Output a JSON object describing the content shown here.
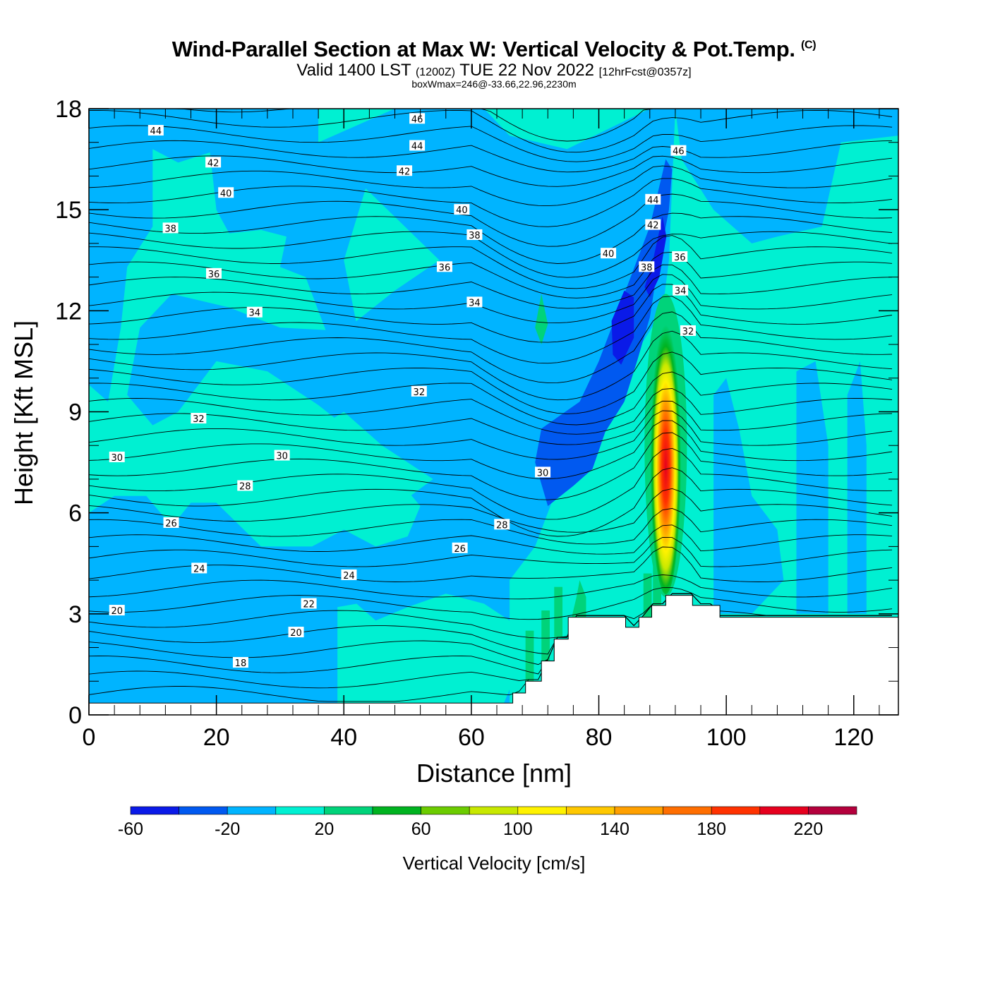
{
  "header": {
    "title": "Wind-Parallel Section at Max W: Vertical Velocity & Pot.Temp.",
    "copyright": "(C)",
    "valid_prefix": "Valid 1400 LST",
    "valid_zulu": "(1200Z)",
    "valid_date": "TUE 22 Nov 2022",
    "forecast": "[12hrFcst@0357z]",
    "box_wmax": "boxWmax=246@-33.66,22.96,2230m"
  },
  "chart_data": {
    "type": "cross-section contour",
    "xlabel": "Distance [nm]",
    "ylabel": "Height [Kft MSL]",
    "xlim": [
      0,
      127
    ],
    "ylim": [
      0,
      18
    ],
    "xticks": [
      "0",
      "20",
      "40",
      "60",
      "80",
      "100",
      "120"
    ],
    "yticks": [
      "0",
      "3",
      "6",
      "9",
      "12",
      "15",
      "18"
    ],
    "colorbar": {
      "label": "Vertical Velocity [cm/s]",
      "levels": [
        -60,
        -40,
        -20,
        0,
        20,
        40,
        60,
        80,
        100,
        120,
        140,
        160,
        180,
        200,
        220,
        240
      ],
      "tick_labels": [
        "-60",
        "-20",
        "20",
        "60",
        "100",
        "140",
        "180",
        "220"
      ],
      "colors": [
        "#0a1ae8",
        "#0059f0",
        "#00b4ff",
        "#00f0d2",
        "#00d37a",
        "#00b320",
        "#6ccc00",
        "#c8e800",
        "#fff200",
        "#ffc800",
        "#ffa000",
        "#ff6e00",
        "#ff3200",
        "#e6001e",
        "#b4003c"
      ]
    },
    "max_updraft": {
      "x_nm": 90.5,
      "z_kft_bottom": 3.5,
      "z_kft_top": 12.5,
      "peak_cm_s": 246
    },
    "terrain_kft": [
      [
        0,
        0.35
      ],
      [
        66.5,
        0.35
      ],
      [
        66.5,
        0.65
      ],
      [
        68.5,
        0.65
      ],
      [
        68.5,
        1.0
      ],
      [
        71,
        1.0
      ],
      [
        71,
        1.6
      ],
      [
        73,
        1.6
      ],
      [
        73,
        2.25
      ],
      [
        75.2,
        2.25
      ],
      [
        75.2,
        2.9
      ],
      [
        84.2,
        2.9
      ],
      [
        84.2,
        2.6
      ],
      [
        86.3,
        2.6
      ],
      [
        86.3,
        2.9
      ],
      [
        88.3,
        2.9
      ],
      [
        88.3,
        3.25
      ],
      [
        90.5,
        3.25
      ],
      [
        90.5,
        3.55
      ],
      [
        94.7,
        3.55
      ],
      [
        94.7,
        3.25
      ],
      [
        99,
        3.25
      ],
      [
        99,
        2.9
      ],
      [
        127,
        2.9
      ]
    ],
    "theta_labels": [
      {
        "text": "44",
        "x": 10.5,
        "y": 17.35
      },
      {
        "text": "46",
        "x": 51.5,
        "y": 17.7
      },
      {
        "text": "44",
        "x": 51.5,
        "y": 16.9
      },
      {
        "text": "42",
        "x": 19.5,
        "y": 16.4
      },
      {
        "text": "42",
        "x": 49.5,
        "y": 16.15
      },
      {
        "text": "46",
        "x": 92.5,
        "y": 16.75
      },
      {
        "text": "40",
        "x": 21.5,
        "y": 15.5
      },
      {
        "text": "40",
        "x": 58.5,
        "y": 15.0
      },
      {
        "text": "44",
        "x": 88.5,
        "y": 15.3
      },
      {
        "text": "38",
        "x": 12.8,
        "y": 14.45
      },
      {
        "text": "38",
        "x": 60.5,
        "y": 14.25
      },
      {
        "text": "42",
        "x": 88.5,
        "y": 14.55
      },
      {
        "text": "40",
        "x": 81.5,
        "y": 13.7
      },
      {
        "text": "36",
        "x": 19.6,
        "y": 13.1
      },
      {
        "text": "36",
        "x": 55.8,
        "y": 13.3
      },
      {
        "text": "38",
        "x": 87.5,
        "y": 13.3
      },
      {
        "text": "36",
        "x": 92.7,
        "y": 13.6
      },
      {
        "text": "34",
        "x": 92.8,
        "y": 12.6
      },
      {
        "text": "34",
        "x": 60.5,
        "y": 12.25
      },
      {
        "text": "34",
        "x": 26.0,
        "y": 11.95
      },
      {
        "text": "32",
        "x": 94.0,
        "y": 11.4
      },
      {
        "text": "32",
        "x": 51.8,
        "y": 9.6
      },
      {
        "text": "32",
        "x": 17.2,
        "y": 8.8
      },
      {
        "text": "30",
        "x": 4.4,
        "y": 7.65
      },
      {
        "text": "30",
        "x": 30.3,
        "y": 7.7
      },
      {
        "text": "30",
        "x": 71.2,
        "y": 7.2
      },
      {
        "text": "28",
        "x": 24.5,
        "y": 6.8
      },
      {
        "text": "26",
        "x": 12.9,
        "y": 5.7
      },
      {
        "text": "28",
        "x": 64.8,
        "y": 5.65
      },
      {
        "text": "26",
        "x": 58.2,
        "y": 4.95
      },
      {
        "text": "24",
        "x": 17.3,
        "y": 4.35
      },
      {
        "text": "24",
        "x": 40.8,
        "y": 4.15
      },
      {
        "text": "22",
        "x": 34.5,
        "y": 3.3
      },
      {
        "text": "20",
        "x": 4.4,
        "y": 3.1
      },
      {
        "text": "20",
        "x": 32.5,
        "y": 2.45
      },
      {
        "text": "18",
        "x": 23.8,
        "y": 1.55
      }
    ]
  }
}
